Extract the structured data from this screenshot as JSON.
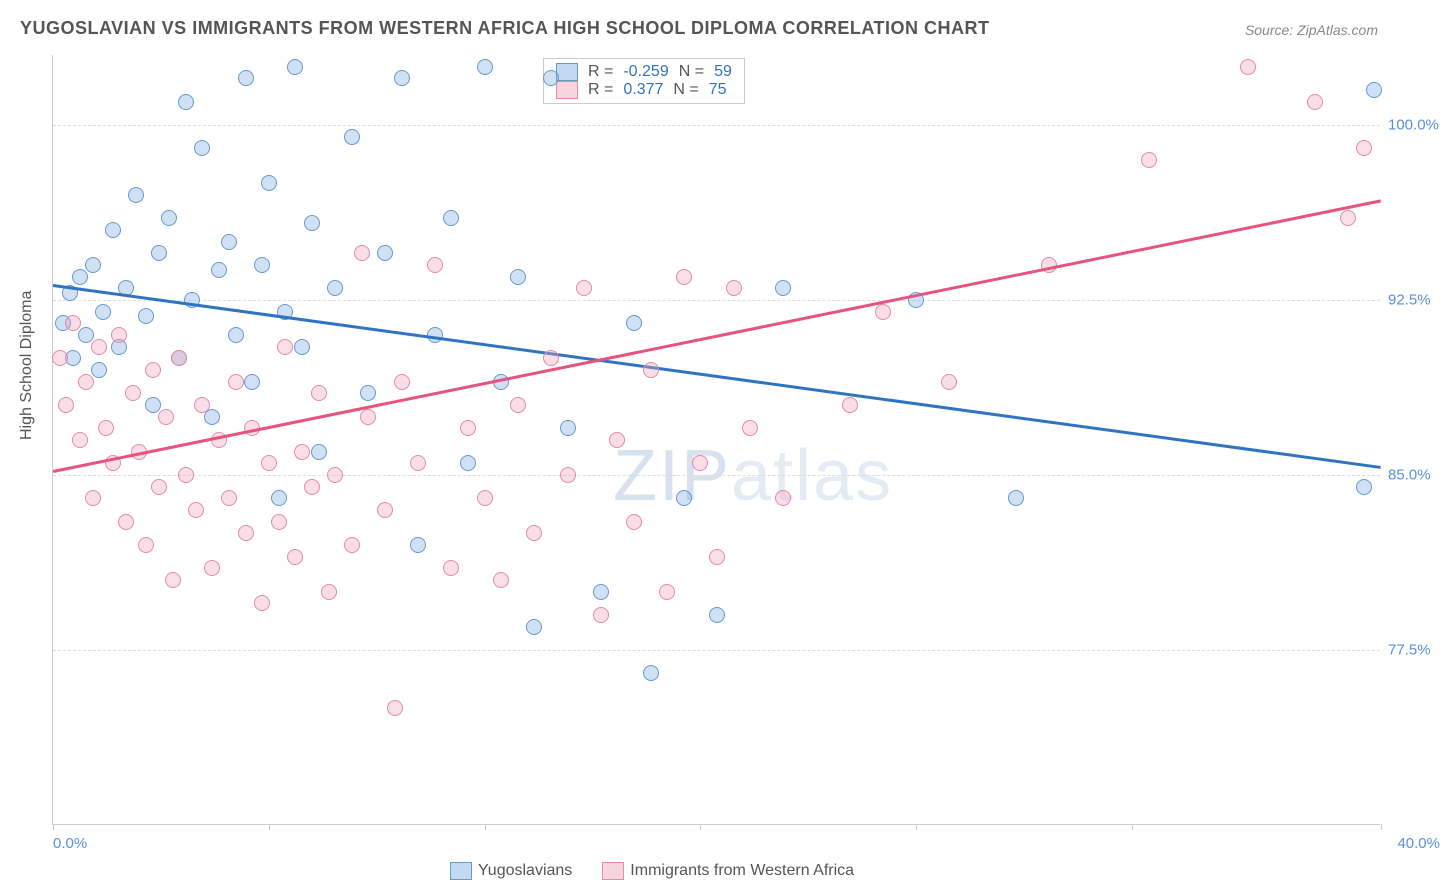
{
  "title": "YUGOSLAVIAN VS IMMIGRANTS FROM WESTERN AFRICA HIGH SCHOOL DIPLOMA CORRELATION CHART",
  "source": "Source: ZipAtlas.com",
  "watermark_a": "ZIP",
  "watermark_b": "atlas",
  "yaxis_label": "High School Diploma",
  "chart": {
    "type": "scatter",
    "xlim": [
      0,
      40
    ],
    "ylim": [
      70,
      103
    ],
    "xtick_positions": [
      0,
      6.5,
      13,
      19.5,
      26,
      32.5,
      40
    ],
    "xtick_labels": {
      "left": "0.0%",
      "right": "40.0%"
    },
    "ytick_positions": [
      77.5,
      85.0,
      92.5,
      100.0
    ],
    "ytick_labels": [
      "77.5%",
      "85.0%",
      "92.5%",
      "100.0%"
    ],
    "grid_color": "#dddddd",
    "background_color": "#ffffff",
    "marker_size": 16,
    "series": [
      {
        "name": "Yugoslavians",
        "color_fill": "rgba(120,170,225,0.35)",
        "color_border": "#6699cc",
        "trend_color": "#2f74c0",
        "R": "-0.259",
        "N": "59",
        "trend": {
          "x1": 0,
          "y1": 93.2,
          "x2": 40,
          "y2": 85.4
        },
        "points": [
          [
            0.3,
            91.5
          ],
          [
            0.5,
            92.8
          ],
          [
            0.6,
            90.0
          ],
          [
            0.8,
            93.5
          ],
          [
            1.0,
            91.0
          ],
          [
            1.2,
            94.0
          ],
          [
            1.4,
            89.5
          ],
          [
            1.5,
            92.0
          ],
          [
            1.8,
            95.5
          ],
          [
            2.0,
            90.5
          ],
          [
            2.2,
            93.0
          ],
          [
            2.5,
            97.0
          ],
          [
            2.8,
            91.8
          ],
          [
            3.0,
            88.0
          ],
          [
            3.2,
            94.5
          ],
          [
            3.5,
            96.0
          ],
          [
            3.8,
            90.0
          ],
          [
            4.0,
            101.0
          ],
          [
            4.2,
            92.5
          ],
          [
            4.5,
            99.0
          ],
          [
            4.8,
            87.5
          ],
          [
            5.0,
            93.8
          ],
          [
            5.3,
            95.0
          ],
          [
            5.5,
            91.0
          ],
          [
            5.8,
            102.0
          ],
          [
            6.0,
            89.0
          ],
          [
            6.3,
            94.0
          ],
          [
            6.5,
            97.5
          ],
          [
            6.8,
            84.0
          ],
          [
            7.0,
            92.0
          ],
          [
            7.3,
            102.5
          ],
          [
            7.5,
            90.5
          ],
          [
            7.8,
            95.8
          ],
          [
            8.0,
            86.0
          ],
          [
            8.5,
            93.0
          ],
          [
            9.0,
            99.5
          ],
          [
            9.5,
            88.5
          ],
          [
            10.0,
            94.5
          ],
          [
            10.5,
            102.0
          ],
          [
            11.0,
            82.0
          ],
          [
            11.5,
            91.0
          ],
          [
            12.0,
            96.0
          ],
          [
            12.5,
            85.5
          ],
          [
            13.0,
            102.5
          ],
          [
            13.5,
            89.0
          ],
          [
            14.0,
            93.5
          ],
          [
            14.5,
            78.5
          ],
          [
            15.0,
            102.0
          ],
          [
            15.5,
            87.0
          ],
          [
            16.5,
            80.0
          ],
          [
            17.5,
            91.5
          ],
          [
            18.0,
            76.5
          ],
          [
            19.0,
            84.0
          ],
          [
            20.0,
            79.0
          ],
          [
            22.0,
            93.0
          ],
          [
            26.0,
            92.5
          ],
          [
            29.0,
            84.0
          ],
          [
            39.5,
            84.5
          ],
          [
            39.8,
            101.5
          ]
        ]
      },
      {
        "name": "Immigrants from Western Africa",
        "color_fill": "rgba(240,160,185,0.35)",
        "color_border": "#e28ca8",
        "trend_color": "#e6537e",
        "R": "0.377",
        "N": "75",
        "trend": {
          "x1": 0,
          "y1": 85.2,
          "x2": 40,
          "y2": 96.8
        },
        "points": [
          [
            0.2,
            90.0
          ],
          [
            0.4,
            88.0
          ],
          [
            0.6,
            91.5
          ],
          [
            0.8,
            86.5
          ],
          [
            1.0,
            89.0
          ],
          [
            1.2,
            84.0
          ],
          [
            1.4,
            90.5
          ],
          [
            1.6,
            87.0
          ],
          [
            1.8,
            85.5
          ],
          [
            2.0,
            91.0
          ],
          [
            2.2,
            83.0
          ],
          [
            2.4,
            88.5
          ],
          [
            2.6,
            86.0
          ],
          [
            2.8,
            82.0
          ],
          [
            3.0,
            89.5
          ],
          [
            3.2,
            84.5
          ],
          [
            3.4,
            87.5
          ],
          [
            3.6,
            80.5
          ],
          [
            3.8,
            90.0
          ],
          [
            4.0,
            85.0
          ],
          [
            4.3,
            83.5
          ],
          [
            4.5,
            88.0
          ],
          [
            4.8,
            81.0
          ],
          [
            5.0,
            86.5
          ],
          [
            5.3,
            84.0
          ],
          [
            5.5,
            89.0
          ],
          [
            5.8,
            82.5
          ],
          [
            6.0,
            87.0
          ],
          [
            6.3,
            79.5
          ],
          [
            6.5,
            85.5
          ],
          [
            6.8,
            83.0
          ],
          [
            7.0,
            90.5
          ],
          [
            7.3,
            81.5
          ],
          [
            7.5,
            86.0
          ],
          [
            7.8,
            84.5
          ],
          [
            8.0,
            88.5
          ],
          [
            8.3,
            80.0
          ],
          [
            8.5,
            85.0
          ],
          [
            9.0,
            82.0
          ],
          [
            9.3,
            94.5
          ],
          [
            9.5,
            87.5
          ],
          [
            10.0,
            83.5
          ],
          [
            10.3,
            75.0
          ],
          [
            10.5,
            89.0
          ],
          [
            11.0,
            85.5
          ],
          [
            11.5,
            94.0
          ],
          [
            12.0,
            81.0
          ],
          [
            12.5,
            87.0
          ],
          [
            13.0,
            84.0
          ],
          [
            13.5,
            80.5
          ],
          [
            14.0,
            88.0
          ],
          [
            14.5,
            82.5
          ],
          [
            15.0,
            90.0
          ],
          [
            15.5,
            85.0
          ],
          [
            16.0,
            93.0
          ],
          [
            16.5,
            79.0
          ],
          [
            17.0,
            86.5
          ],
          [
            17.5,
            83.0
          ],
          [
            18.0,
            89.5
          ],
          [
            18.5,
            80.0
          ],
          [
            19.0,
            93.5
          ],
          [
            19.5,
            85.5
          ],
          [
            20.0,
            81.5
          ],
          [
            20.5,
            93.0
          ],
          [
            21.0,
            87.0
          ],
          [
            22.0,
            84.0
          ],
          [
            24.0,
            88.0
          ],
          [
            25.0,
            92.0
          ],
          [
            27.0,
            89.0
          ],
          [
            30.0,
            94.0
          ],
          [
            33.0,
            98.5
          ],
          [
            36.0,
            102.5
          ],
          [
            38.0,
            101.0
          ],
          [
            39.0,
            96.0
          ],
          [
            39.5,
            99.0
          ]
        ]
      }
    ]
  },
  "legend_bottom": {
    "s1": "Yugoslavians",
    "s2": "Immigrants from Western Africa"
  },
  "legend_top": {
    "r_label": "R =",
    "n_label": "N ="
  }
}
